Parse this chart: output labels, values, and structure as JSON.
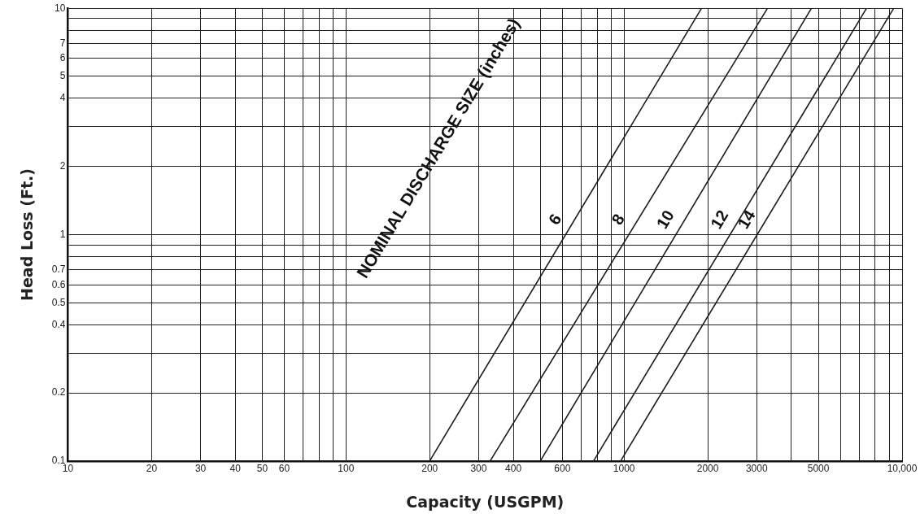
{
  "chart_data": {
    "type": "line",
    "xlabel": "Capacity (USGPM)",
    "ylabel": "Head Loss (Ft.)",
    "log": "xy",
    "grid": true,
    "legend": false,
    "marker": "none",
    "line_style": "solid",
    "xlim": [
      10,
      10000
    ],
    "ylim": [
      0.1,
      10
    ],
    "xticks": [
      10,
      20,
      30,
      40,
      50,
      60,
      {
        "value": 70,
        "label": null
      },
      {
        "value": 80,
        "label": null
      },
      {
        "value": 90,
        "label": null
      },
      100,
      200,
      300,
      400,
      {
        "value": 500,
        "label": null
      },
      600,
      {
        "value": 700,
        "label": null
      },
      {
        "value": 800,
        "label": null
      },
      {
        "value": 900,
        "label": null
      },
      1000,
      2000,
      3000,
      {
        "value": 4000,
        "label": null
      },
      5000,
      {
        "value": 6000,
        "label": null
      },
      {
        "value": 7000,
        "label": null
      },
      {
        "value": 8000,
        "label": null
      },
      {
        "value": 9000,
        "label": null
      },
      {
        "value": 10000,
        "label": "10,000"
      }
    ],
    "yticks": [
      0.1,
      0.2,
      {
        "value": 0.3,
        "label": null
      },
      0.4,
      0.5,
      0.6,
      0.7,
      {
        "value": 0.8,
        "label": null
      },
      {
        "value": 0.9,
        "label": null
      },
      1,
      2,
      {
        "value": 3,
        "label": null
      },
      4,
      5,
      6,
      7,
      {
        "value": 8,
        "label": null
      },
      {
        "value": 9,
        "label": null
      },
      10
    ],
    "series": [
      {
        "name": "6",
        "color": "#1a1a1a",
        "x": [
          200,
          1900
        ],
        "values": [
          0.1,
          10
        ]
      },
      {
        "name": "8",
        "color": "#1a1a1a",
        "x": [
          330,
          3280
        ],
        "values": [
          0.1,
          10
        ]
      },
      {
        "name": "10",
        "color": "#1a1a1a",
        "x": [
          500,
          4720
        ],
        "values": [
          0.1,
          10
        ]
      },
      {
        "name": "12",
        "color": "#1a1a1a",
        "x": [
          777,
          7450
        ],
        "values": [
          0.1,
          10
        ]
      },
      {
        "name": "14",
        "color": "#1a1a1a",
        "x": [
          972,
          9330
        ],
        "values": [
          0.1,
          10
        ]
      }
    ],
    "annotations": [
      "NOMINAL DISCHARGE SIZE (inches)"
    ]
  }
}
